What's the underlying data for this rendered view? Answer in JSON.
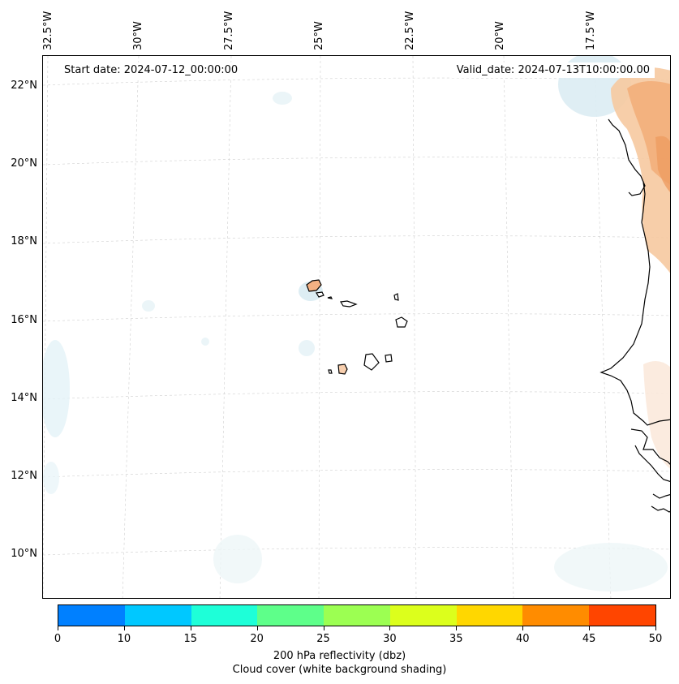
{
  "map": {
    "start_date": "Start date: 2024-07-12_00:00:00",
    "valid_date": "Valid_date: 2024-07-13T10:00:00.00",
    "lat_labels": [
      "22°N",
      "20°N",
      "18°N",
      "16°N",
      "14°N",
      "12°N",
      "10°N"
    ],
    "lon_labels": [
      "32.5°W",
      "30°W",
      "27.5°W",
      "25°W",
      "22.5°W",
      "20°W",
      "17.5°W"
    ]
  },
  "colorbar": {
    "colors": [
      "#0080ff",
      "#00c8ff",
      "#1effd8",
      "#5eff8a",
      "#9cff52",
      "#dcff1c",
      "#ffd700",
      "#ff8c00",
      "#ff4500"
    ],
    "ticks": [
      "0",
      "10",
      "15",
      "20",
      "25",
      "30",
      "35",
      "40",
      "45",
      "50"
    ],
    "label_line1": "200 hPa reflectivity (dbz)",
    "label_line2": "Cloud cover (white background shading)"
  }
}
